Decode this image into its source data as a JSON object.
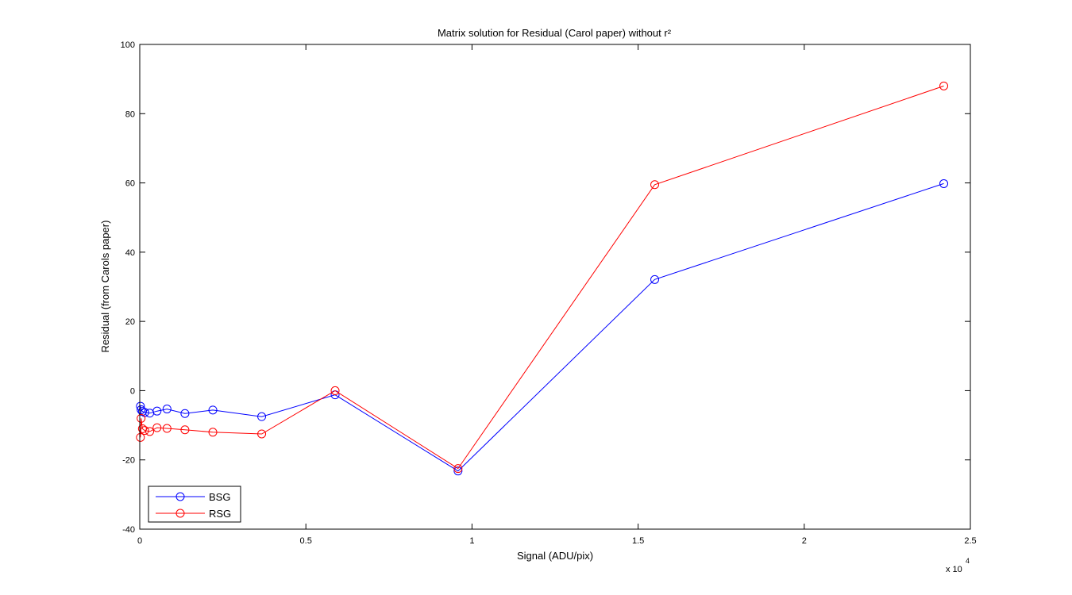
{
  "chart_data": {
    "type": "line",
    "title": "Matrix solution for Residual (Carol paper) without r²",
    "xlabel": "Signal (ADU/pix)",
    "ylabel": "Residual (from Carols paper)",
    "x_exponent_label": "x 10",
    "x_exponent_power": "4",
    "xlim": [
      0,
      25000
    ],
    "ylim": [
      -40,
      100
    ],
    "x_ticks": [
      0,
      5000,
      10000,
      15000,
      20000,
      25000
    ],
    "x_tick_labels": [
      "0",
      "0.5",
      "1",
      "1.5",
      "2",
      "2.5"
    ],
    "y_ticks": [
      -40,
      -20,
      0,
      20,
      40,
      60,
      80,
      100
    ],
    "y_tick_labels": [
      "-40",
      "-20",
      "0",
      "20",
      "40",
      "60",
      "80",
      "100"
    ],
    "grid": false,
    "legend": {
      "position": "bottom-left",
      "entries": [
        "BSG",
        "RSG"
      ]
    },
    "series": [
      {
        "name": "BSG",
        "color": "#0000ff",
        "marker": "circle",
        "x": [
          20,
          40,
          80,
          150,
          300,
          520,
          820,
          1360,
          2200,
          3670,
          5880,
          9580,
          15500,
          24200
        ],
        "y": [
          -4.5,
          -5.5,
          -6.0,
          -6.3,
          -6.5,
          -5.9,
          -5.3,
          -6.6,
          -5.6,
          -7.5,
          -1.2,
          -23.2,
          32.1,
          59.8
        ]
      },
      {
        "name": "RSG",
        "color": "#ff0000",
        "marker": "circle",
        "x": [
          20,
          40,
          80,
          150,
          300,
          520,
          820,
          1360,
          2200,
          3670,
          5880,
          9580,
          15500,
          24200
        ],
        "y": [
          -13.5,
          -8.0,
          -11.0,
          -11.5,
          -11.8,
          -10.7,
          -10.9,
          -11.3,
          -12.0,
          -12.5,
          0.0,
          -22.5,
          59.5,
          88.0
        ]
      }
    ]
  }
}
